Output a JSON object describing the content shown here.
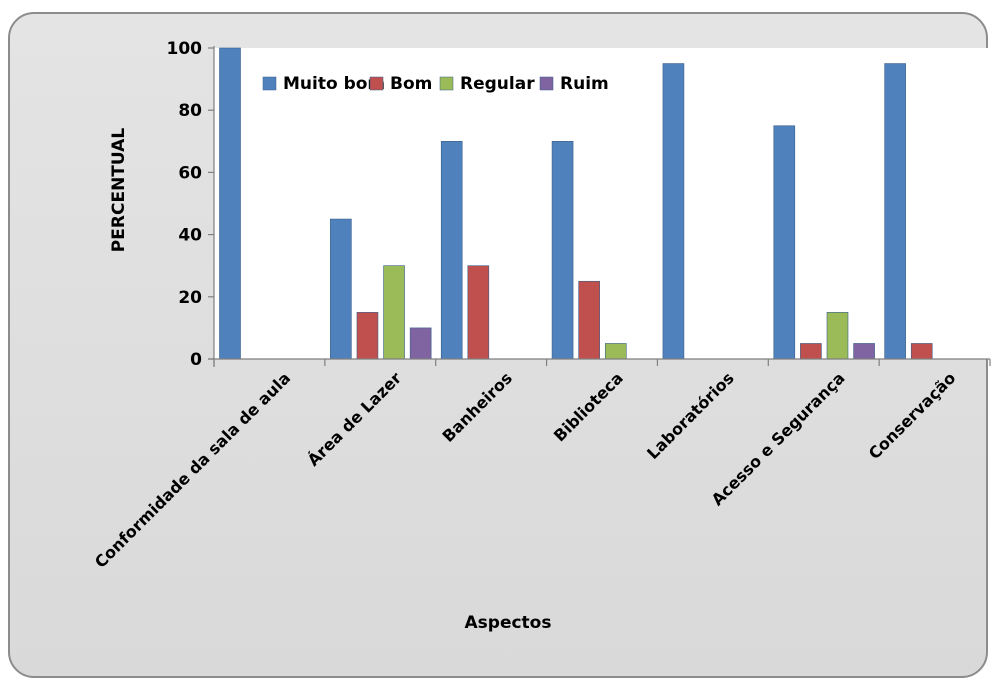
{
  "chart_data": {
    "type": "bar",
    "title": "",
    "xlabel": "Aspectos",
    "ylabel": "PERCENTUAL",
    "ylim": [
      0,
      100
    ],
    "yticks": [
      0,
      20,
      40,
      60,
      80,
      100
    ],
    "categories": [
      "Conformidade da sala de aula",
      "Área de Lazer",
      "Banheiros",
      "Biblioteca",
      "Laboratórios",
      "Acesso e Segurança",
      "Conservação"
    ],
    "series": [
      {
        "name": "Muito bom",
        "color": "#4f81bd",
        "values": [
          100,
          45,
          70,
          70,
          95,
          75,
          95
        ]
      },
      {
        "name": "Bom",
        "color": "#c0504d",
        "values": [
          0,
          15,
          30,
          25,
          0,
          5,
          5
        ]
      },
      {
        "name": "Regular",
        "color": "#9bbb59",
        "values": [
          0,
          30,
          0,
          5,
          0,
          15,
          0
        ]
      },
      {
        "name": "Ruim",
        "color": "#8064a2",
        "values": [
          0,
          10,
          0,
          0,
          0,
          5,
          0
        ]
      }
    ],
    "legend_position": "top-left",
    "grid": false
  }
}
